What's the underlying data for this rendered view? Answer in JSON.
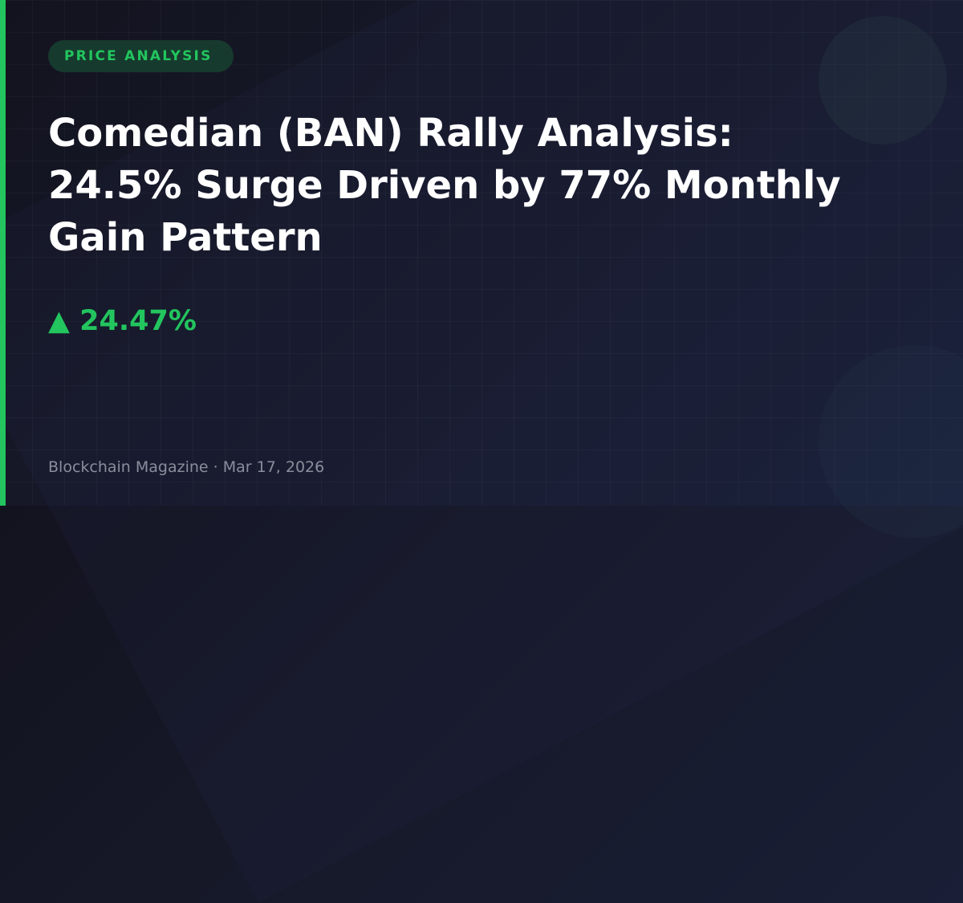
{
  "badge": "PRICE ANALYSIS",
  "title": "Comedian (BAN) Rally Analysis: 24.5% Surge Driven by 77% Monthly Gain Pattern",
  "change": {
    "arrow": "▲",
    "value": "24.47%"
  },
  "footer": "Blockchain Magazine · Mar 17, 2026",
  "colors": {
    "accent": "#22c55e",
    "background": "#15151f"
  }
}
